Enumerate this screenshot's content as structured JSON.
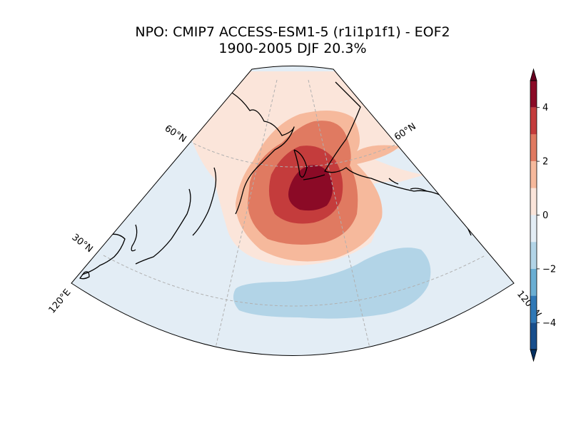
{
  "title": {
    "line1": "NPO: CMIP7 ACCESS-ESM1-5 (r1i1p1f1) - EOF2",
    "line2": "1900-2005 DJF 20.3%"
  },
  "gridlabels": {
    "lat60_left": "60°N",
    "lat60_right": "60°N",
    "lat30_left": "30°N",
    "lon120e": "120°E",
    "lon120w": "120°W"
  },
  "colorbar": {
    "ticks": [
      {
        "value": 4,
        "label": "4"
      },
      {
        "value": 2,
        "label": "2"
      },
      {
        "value": 0,
        "label": "0"
      },
      {
        "value": -2,
        "label": "−2"
      },
      {
        "value": -4,
        "label": "−4"
      }
    ],
    "range": [
      -5,
      5
    ],
    "levels": [
      {
        "from": 4,
        "to": 5,
        "color": "#8b0a26"
      },
      {
        "from": 3,
        "to": 4,
        "color": "#c43c3c"
      },
      {
        "from": 2,
        "to": 3,
        "color": "#e07a61"
      },
      {
        "from": 1,
        "to": 2,
        "color": "#f6b99c"
      },
      {
        "from": 0,
        "to": 1,
        "color": "#fbe5da"
      },
      {
        "from": -1,
        "to": 0,
        "color": "#e3edf5"
      },
      {
        "from": -2,
        "to": -1,
        "color": "#b2d4e7"
      },
      {
        "from": -3,
        "to": -2,
        "color": "#6aaed3"
      },
      {
        "from": -4,
        "to": -3,
        "color": "#2f78b6"
      },
      {
        "from": -5,
        "to": -4,
        "color": "#174e8c"
      }
    ],
    "extend_max_color": "#67001f",
    "extend_min_color": "#053061"
  }
}
